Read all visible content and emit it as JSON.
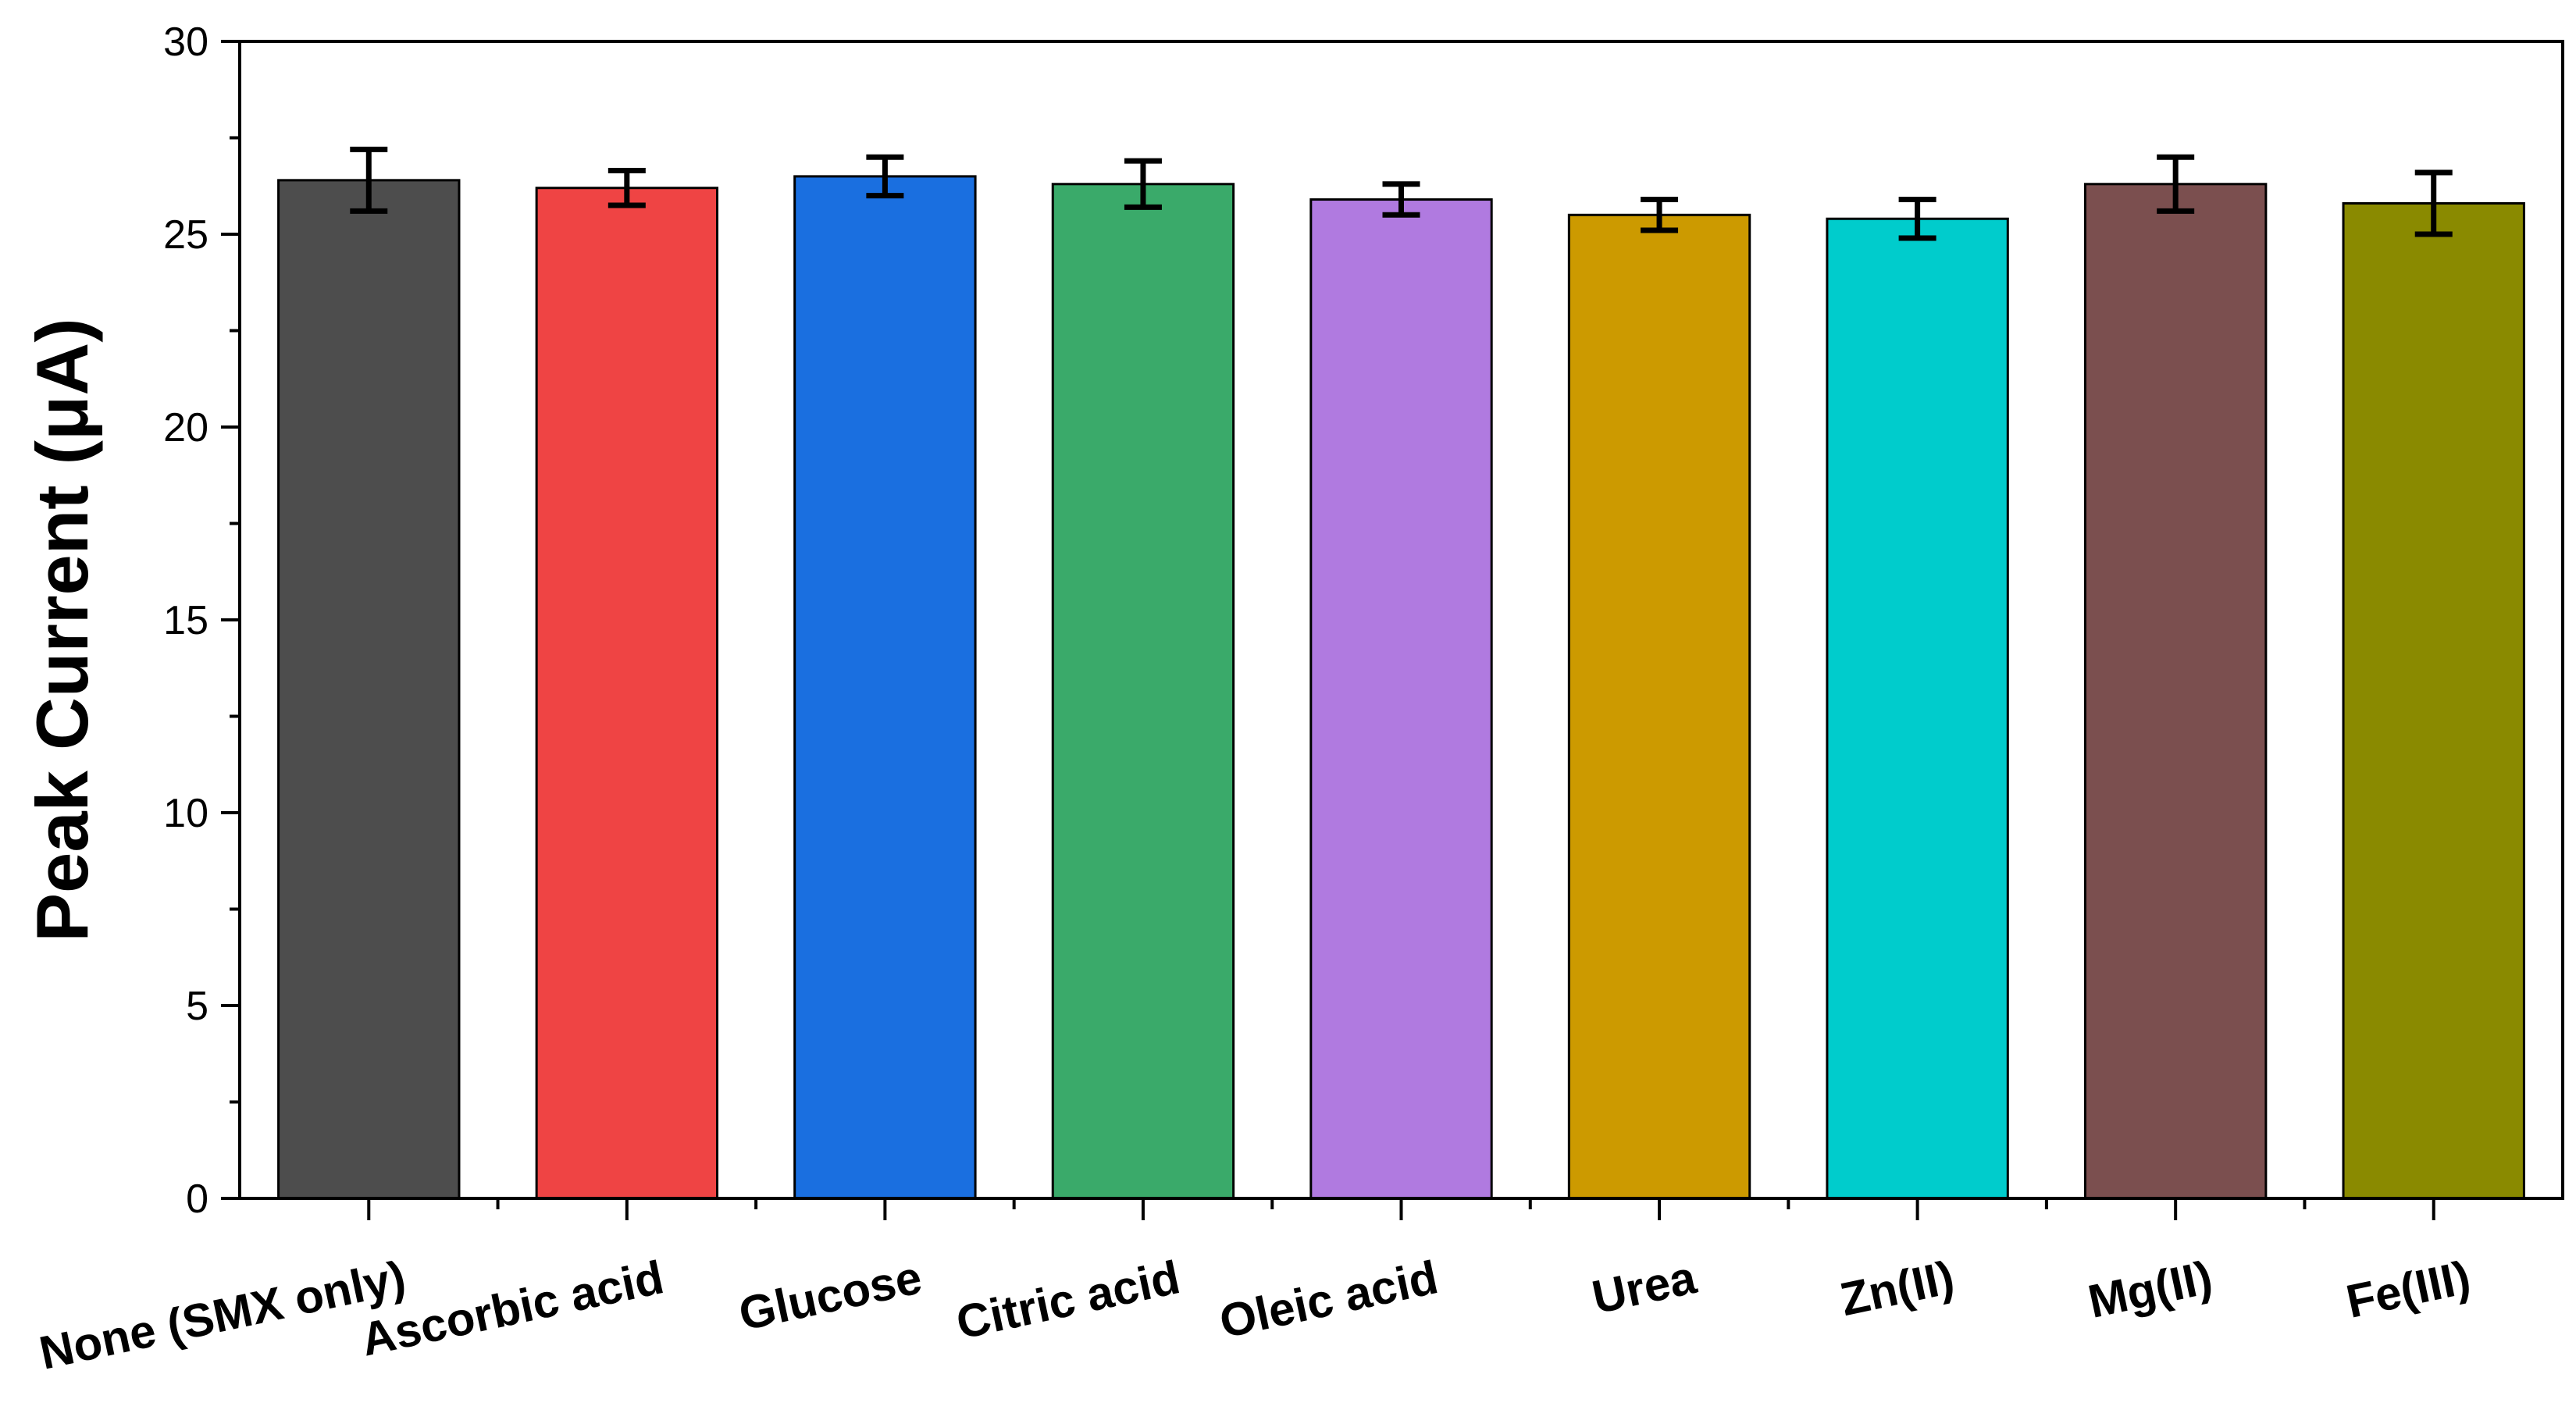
{
  "chart_data": {
    "type": "bar",
    "title": "",
    "xlabel": "",
    "ylabel": "Peak Current (μA)",
    "ylim": [
      0,
      30
    ],
    "yticks": [
      "0",
      "5",
      "10",
      "15",
      "20",
      "25",
      "30"
    ],
    "categories": [
      "None (SMX only)",
      "Ascorbic acid",
      "Glucose",
      "Citric acid",
      "Oleic acid",
      "Urea",
      "Zn(II)",
      "Mg(II)",
      "Fe(III)"
    ],
    "values": [
      26.4,
      26.2,
      26.5,
      26.3,
      25.9,
      25.5,
      25.4,
      26.3,
      25.8
    ],
    "errors": [
      0.8,
      0.45,
      0.5,
      0.6,
      0.4,
      0.4,
      0.5,
      0.7,
      0.8
    ],
    "colors": [
      "#4d4d4d",
      "#ef4444",
      "#1a6fe0",
      "#3aaa6a",
      "#b07ae0",
      "#cc9a00",
      "#00cccc",
      "#7b4f4f",
      "#8a8a00"
    ],
    "grid": false,
    "legend": "none"
  }
}
